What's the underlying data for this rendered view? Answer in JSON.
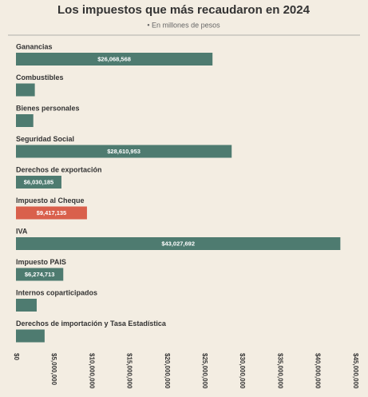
{
  "chart_data": {
    "type": "barh",
    "title": "Los impuestos que más recaudaron en 2024",
    "subtitle": "• En millones de pesos",
    "categories": [
      "Ganancias",
      "Combustibles",
      "Bienes personales",
      "Seguridad Social",
      "Derechos de exportación",
      "Impuesto al Cheque",
      "IVA",
      "Impuesto PAIS",
      "Internos coparticipados",
      "Derechos de importación y Tasa Estadística"
    ],
    "values": [
      26068568,
      2500000,
      2300000,
      28610953,
      6030185,
      9417135,
      43027692,
      6274713,
      2750000,
      3800000
    ],
    "value_labels": [
      "$26,068,568",
      null,
      null,
      "$28,610,953",
      "$6,030,185",
      "$9,417,135",
      "$43,027,692",
      "$6,274,713",
      null,
      null
    ],
    "colors": [
      "#4e7b70",
      "#4e7b70",
      "#4e7b70",
      "#4e7b70",
      "#4e7b70",
      "#d9604c",
      "#4e7b70",
      "#4e7b70",
      "#4e7b70",
      "#4e7b70"
    ],
    "xlim": [
      0,
      45000000
    ],
    "xticks": [
      {
        "value": 0,
        "label": "$0"
      },
      {
        "value": 5000000,
        "label": "$5,000,000"
      },
      {
        "value": 10000000,
        "label": "$10,000,000"
      },
      {
        "value": 15000000,
        "label": "$15,000,000"
      },
      {
        "value": 20000000,
        "label": "$20,000,000"
      },
      {
        "value": 25000000,
        "label": "$25,000,000"
      },
      {
        "value": 30000000,
        "label": "$30,000,000"
      },
      {
        "value": 35000000,
        "label": "$35,000,000"
      },
      {
        "value": 40000000,
        "label": "$40,000,000"
      },
      {
        "value": 45000000,
        "label": "$45,000,000"
      }
    ],
    "grid": false
  }
}
